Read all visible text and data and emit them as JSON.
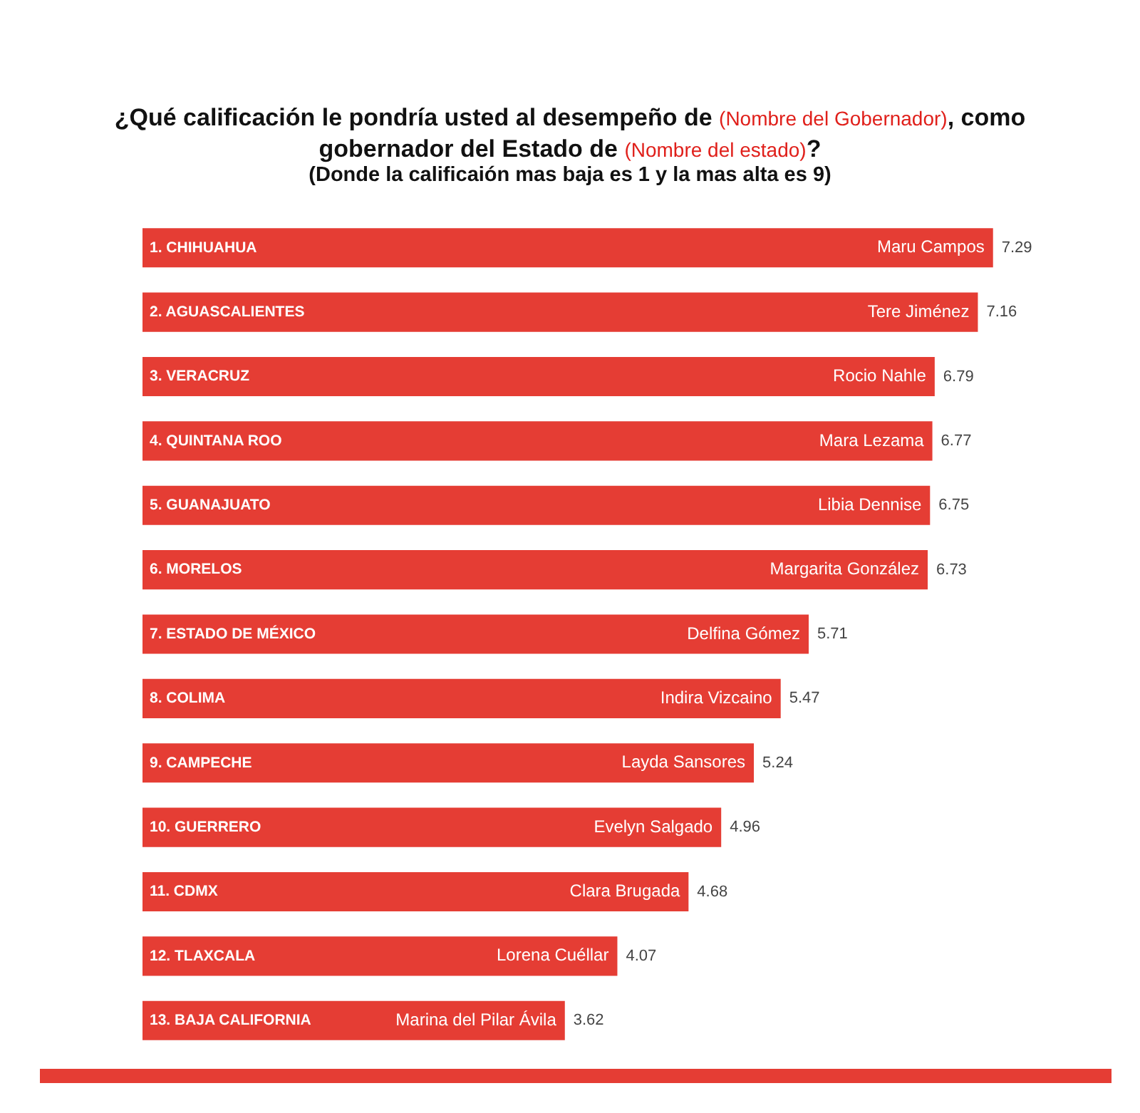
{
  "chart_data": {
    "type": "bar",
    "orientation": "horizontal",
    "title": "¿Qué calificación le pondría usted al desempeño de (Nombre del Gobernador), como gobernador del Estado de (Nombre del estado)?",
    "subtitle": "(Donde la calificaión mas baja es 1 y la mas alta es 9)",
    "categories": [
      "1. CHIHUAHUA",
      "2. AGUASCALIENTES",
      "3. VERACRUZ",
      "4. QUINTANA ROO",
      "5. GUANAJUATO",
      "6. MORELOS",
      "7. ESTADO DE MÉXICO",
      "8. COLIMA",
      "9. CAMPECHE",
      "10. GUERRERO",
      "11. CDMX",
      "12. TLAXCALA",
      "13. BAJA CALIFORNIA"
    ],
    "values": [
      7.29,
      7.16,
      6.79,
      6.77,
      6.75,
      6.73,
      5.71,
      5.47,
      5.24,
      4.96,
      4.68,
      4.07,
      3.62
    ],
    "color": "#e53d34",
    "data_labels": true,
    "tick_labels": "y",
    "legend": false,
    "annotations": [
      {
        "text": "Maru Campos",
        "x": 7.29,
        "y": "1. CHIHUAHUA"
      },
      {
        "text": "Tere Jiménez",
        "x": 7.16,
        "y": "2. AGUASCALIENTES"
      },
      {
        "text": "Rocio Nahle",
        "x": 6.79,
        "y": "3. VERACRUZ"
      },
      {
        "text": "Mara Lezama",
        "x": 6.77,
        "y": "4. QUINTANA ROO"
      },
      {
        "text": "Libia Dennise",
        "x": 6.75,
        "y": "5. GUANAJUATO"
      },
      {
        "text": "Margarita González",
        "x": 6.73,
        "y": "6. MORELOS"
      },
      {
        "text": "Delfina Gómez",
        "x": 5.71,
        "y": "7. ESTADO DE MÉXICO"
      },
      {
        "text": "Indira Vizcaino",
        "x": 5.47,
        "y": "8. COLIMA"
      },
      {
        "text": "Layda Sansores",
        "x": 5.24,
        "y": "9. CAMPECHE"
      },
      {
        "text": "Evelyn Salgado",
        "x": 4.96,
        "y": "10. GUERRERO"
      },
      {
        "text": "Clara Brugada",
        "x": 4.68,
        "y": "11. CDMX"
      },
      {
        "text": "Lorena Cuéllar",
        "x": 4.07,
        "y": "12. TLAXCALA"
      },
      {
        "text": "Marina del Pilar Ávila",
        "x": 3.62,
        "y": "13. BAJA CALIFORNIA"
      }
    ]
  }
}
